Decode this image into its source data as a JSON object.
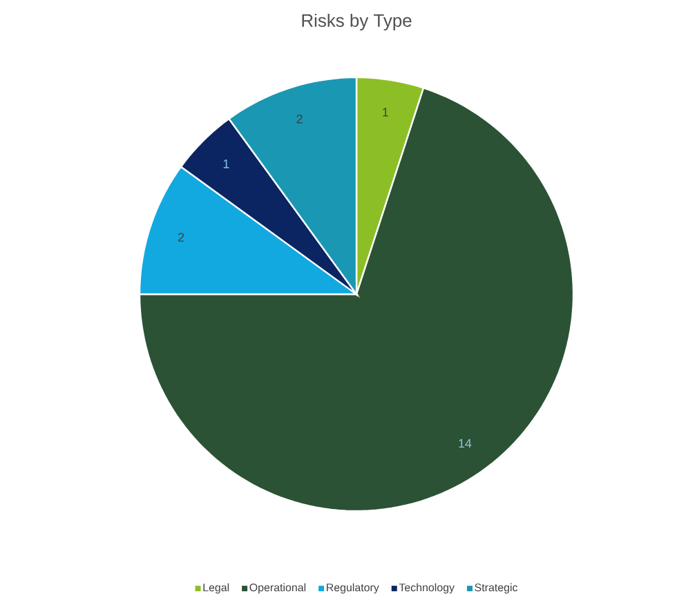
{
  "chart_data": {
    "type": "pie",
    "title": "Risks by Type",
    "categories": [
      "Legal",
      "Operational",
      "Regulatory",
      "Technology",
      "Strategic"
    ],
    "values": [
      1,
      14,
      2,
      1,
      2
    ],
    "colors": [
      "#8cbf26",
      "#2b5234",
      "#12a9e1",
      "#0b2462",
      "#1a98b3"
    ],
    "data_labels": true,
    "legend": "bottom"
  }
}
